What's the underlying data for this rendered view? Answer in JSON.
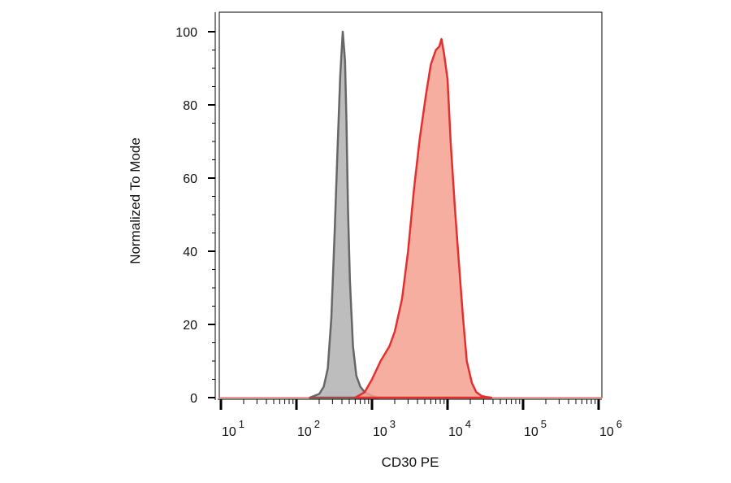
{
  "chart_data": {
    "type": "area",
    "xlabel": "CD30 PE",
    "ylabel": "Normalized To Mode",
    "x_scale": "log",
    "x_ticks": [
      {
        "base": "10",
        "exp": "1"
      },
      {
        "base": "10",
        "exp": "2"
      },
      {
        "base": "10",
        "exp": "3"
      },
      {
        "base": "10",
        "exp": "4"
      },
      {
        "base": "10",
        "exp": "5"
      },
      {
        "base": "10",
        "exp": "6"
      }
    ],
    "y_ticks": [
      "0",
      "20",
      "40",
      "60",
      "80",
      "100"
    ],
    "ylim": [
      0,
      104
    ],
    "grid": false,
    "legend": "none",
    "series": [
      {
        "color": "#666666",
        "fill": "#b2b2b2",
        "x": [
          150,
          200,
          230,
          260,
          290,
          320,
          350,
          380,
          410,
          440,
          460,
          480,
          510,
          560,
          620,
          700,
          800,
          1000,
          1200
        ],
        "y": [
          0,
          1,
          3,
          8,
          22,
          45,
          68,
          88,
          100,
          92,
          75,
          52,
          32,
          14,
          6,
          3,
          1.5,
          0.5,
          0
        ]
      },
      {
        "color": "#e3302f",
        "fill": "#f5a090",
        "x": [
          600,
          800,
          1000,
          1300,
          1700,
          2000,
          2500,
          3000,
          3600,
          4300,
          5200,
          6000,
          7000,
          7800,
          8300,
          9000,
          10000,
          11000,
          12500,
          14000,
          16000,
          18000,
          21000,
          24000,
          28000,
          32000,
          38000
        ],
        "y": [
          0,
          1.5,
          5,
          10,
          14,
          18,
          27,
          40,
          57,
          71,
          83,
          91,
          95,
          96,
          98,
          94,
          87,
          70,
          52,
          38,
          22,
          10,
          4,
          1.5,
          0.5,
          0.2,
          0
        ]
      }
    ]
  }
}
